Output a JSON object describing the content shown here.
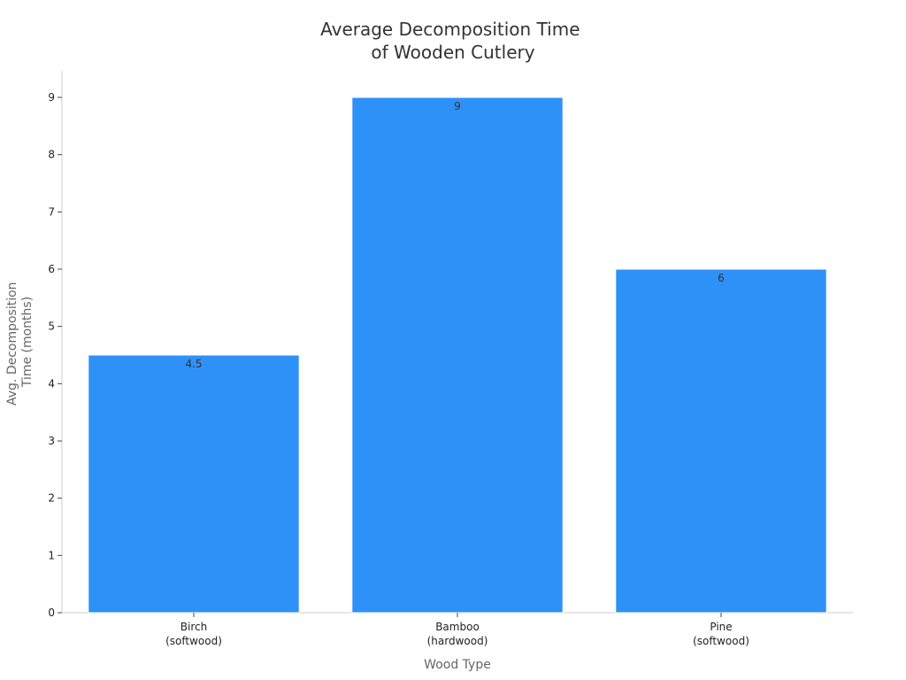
{
  "chart_data": {
    "type": "bar",
    "title": [
      "Average Decomposition Time",
      "of Wooden Cutlery"
    ],
    "xlabel": "Wood Type",
    "ylabel": [
      "Avg. Decomposition",
      "Time (months)"
    ],
    "categories": [
      [
        "Birch",
        "(softwood)"
      ],
      [
        "Bamboo",
        "(hardwood)"
      ],
      [
        "Pine",
        "(softwood)"
      ]
    ],
    "values": [
      4.5,
      9,
      6
    ],
    "data_labels": [
      "4.5",
      "9",
      "6"
    ],
    "ylim": [
      0,
      9.5
    ],
    "yticks": [
      0,
      1,
      2,
      3,
      4,
      5,
      6,
      7,
      8,
      9
    ],
    "bar_color": "#2e91f8",
    "grid": false,
    "legend": "none"
  }
}
